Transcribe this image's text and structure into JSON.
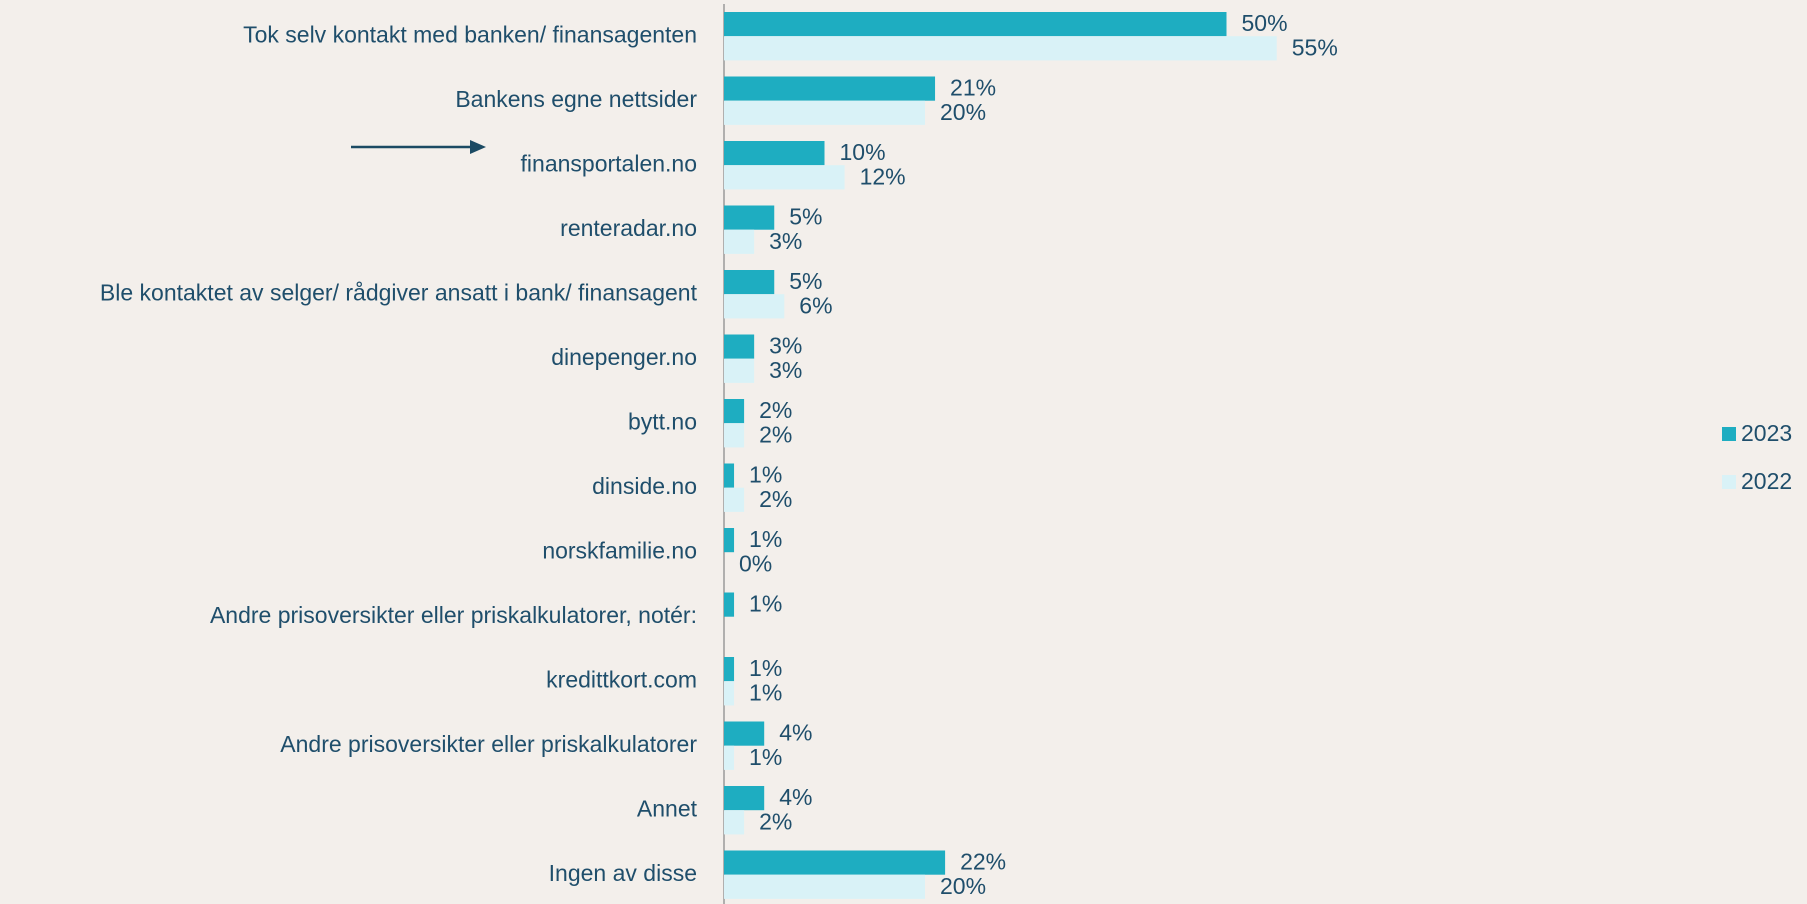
{
  "chart_data": {
    "type": "bar",
    "orientation": "horizontal",
    "categories": [
      "Tok selv kontakt med banken/ finansagenten",
      "Bankens egne nettsider",
      "finansportalen.no",
      "renteradar.no",
      "Ble kontaktet av selger/ rådgiver ansatt i bank/ finansagent",
      "dinepenger.no",
      "bytt.no",
      "dinside.no",
      "norskfamilie.no",
      "Andre prisoversikter  eller priskalkulatorer,  notér:",
      "kredittkort.com",
      "Andre prisoversikter eller priskalkulatorer",
      "Annet",
      "Ingen av disse"
    ],
    "series": [
      {
        "name": "2023",
        "color": "#1eadc1",
        "values": [
          50,
          21,
          10,
          5,
          5,
          3,
          2,
          1,
          1,
          1,
          1,
          4,
          4,
          22
        ],
        "value_labels": [
          "50%",
          "21%",
          "10%",
          "5%",
          "5%",
          "3%",
          "2%",
          "1%",
          "1%",
          "1%",
          "1%",
          "4%",
          "4%",
          "22%"
        ]
      },
      {
        "name": "2022",
        "color": "#d9f2f7",
        "values": [
          55,
          20,
          12,
          3,
          6,
          3,
          2,
          2,
          0,
          null,
          1,
          1,
          2,
          20
        ],
        "value_labels": [
          "55%",
          "20%",
          "12%",
          "3%",
          "6%",
          "3%",
          "2%",
          "2%",
          "0%",
          null,
          "1%",
          "1%",
          "2%",
          "20%"
        ]
      }
    ],
    "xlim": [
      0,
      100
    ],
    "legend": "right"
  }
}
